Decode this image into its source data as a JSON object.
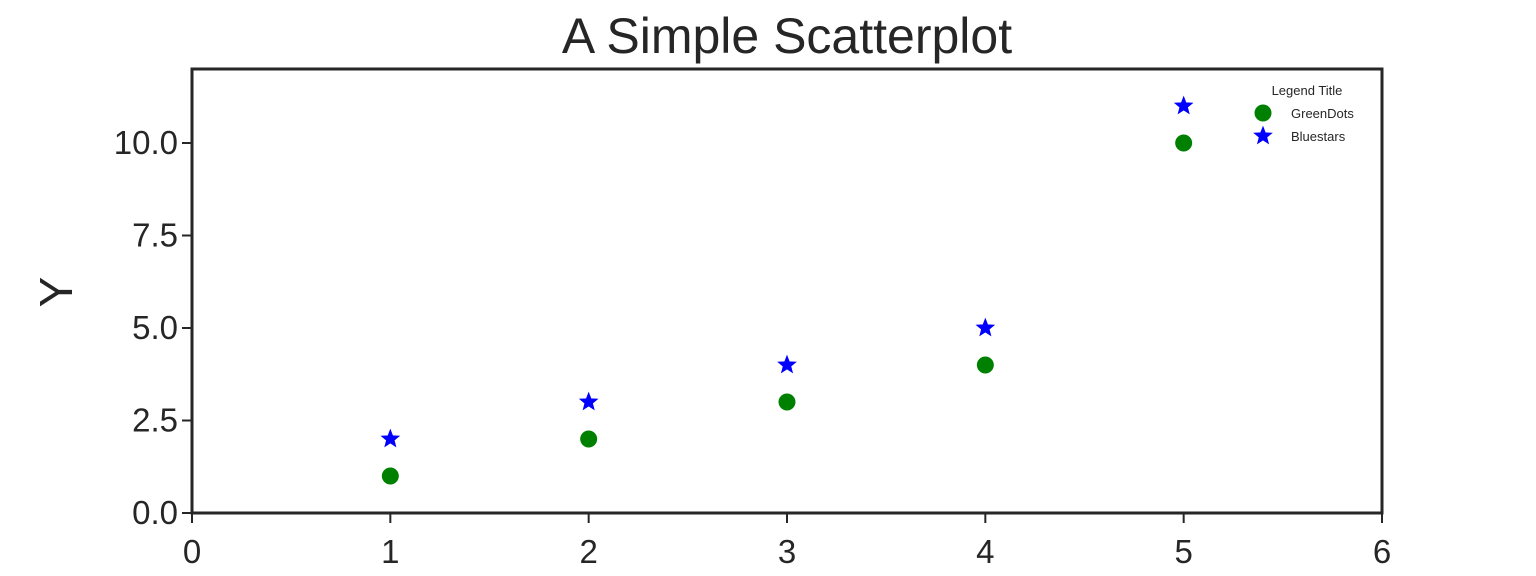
{
  "chart_data": {
    "type": "scatter",
    "title": "A Simple Scatterplot",
    "xlabel": "",
    "ylabel": "Y",
    "xlim": [
      0,
      6
    ],
    "ylim": [
      0,
      12
    ],
    "x_ticks": [
      "0",
      "1",
      "2",
      "3",
      "4",
      "5",
      "6"
    ],
    "y_ticks": [
      "0.0",
      "2.5",
      "5.0",
      "7.5",
      "10.0"
    ],
    "grid": false,
    "legend": {
      "title": "Legend Title",
      "placement": "top-right"
    },
    "series": [
      {
        "name": "GreenDots",
        "marker": "circle",
        "color": "#008000",
        "x": [
          1,
          2,
          3,
          4,
          5
        ],
        "y": [
          1,
          2,
          3,
          4,
          10
        ]
      },
      {
        "name": "Bluestars",
        "marker": "star",
        "color": "#0000ff",
        "x": [
          1,
          2,
          3,
          4,
          5
        ],
        "y": [
          2,
          3,
          4,
          5,
          11
        ]
      }
    ]
  }
}
